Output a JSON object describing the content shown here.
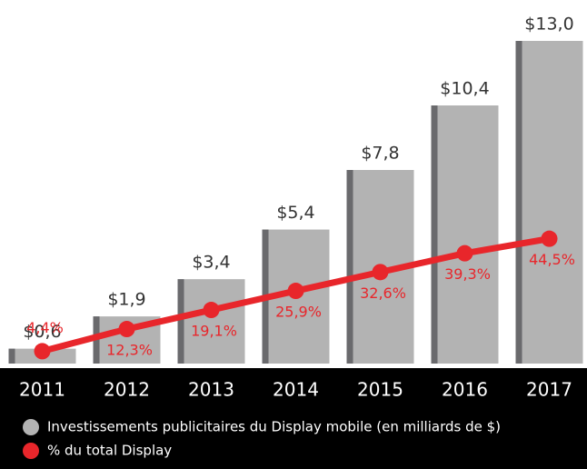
{
  "chart_data": {
    "type": "bar",
    "categories": [
      "2011",
      "2012",
      "2013",
      "2014",
      "2015",
      "2016",
      "2017"
    ],
    "series": [
      {
        "name": "Investissements publicitaires du Display mobile (en milliards de $)",
        "type": "bar",
        "color": "#b3b3b3",
        "edge_color": "#6a6a6d",
        "values": [
          0.6,
          1.9,
          3.4,
          5.4,
          7.8,
          10.4,
          13.0
        ],
        "value_labels": [
          "$0,6",
          "$1,9",
          "$3,4",
          "$5,4",
          "$7,8",
          "$10,4",
          "$13,0"
        ]
      },
      {
        "name": "% du total Display",
        "type": "line",
        "axis": "y2",
        "color": "#e8262b",
        "values": [
          4.4,
          12.3,
          19.1,
          25.9,
          32.6,
          39.3,
          44.5
        ],
        "value_labels": [
          "4,4%",
          "12,3%",
          "19,1%",
          "25,9%",
          "32,6%",
          "39,3%",
          "44,5%"
        ]
      }
    ],
    "ylim": [
      0,
      13
    ],
    "y2lim": [
      0,
      115
    ]
  }
}
